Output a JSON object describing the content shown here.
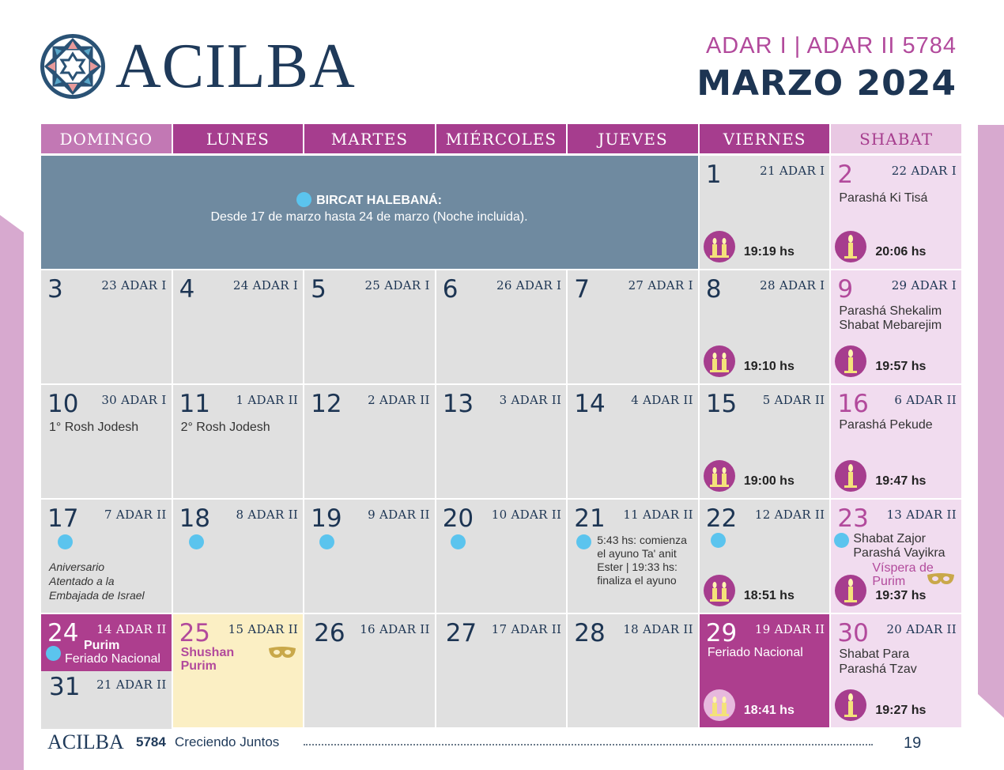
{
  "brand": {
    "name": "ACILBA"
  },
  "header": {
    "hebrew_months": "ADAR I | ADAR II 5784",
    "month": "MARZO 2024"
  },
  "weekdays": [
    "DOMINGO",
    "LUNES",
    "MARTES",
    "MIÉRCOLES",
    "JUEVES",
    "VIERNES",
    "SHABAT"
  ],
  "banner": {
    "title": "BIRCAT HALEBANÁ:",
    "text": "Desde 17 de marzo hasta 24 de marzo (Noche incluida)."
  },
  "days": {
    "d1": {
      "num": "1",
      "heb": "21 ADAR I",
      "time": "19:19 hs"
    },
    "d2": {
      "num": "2",
      "heb": "22 ADAR I",
      "note": "Parashá Ki Tisá",
      "time": "20:06 hs"
    },
    "d3": {
      "num": "3",
      "heb": "23 ADAR I"
    },
    "d4": {
      "num": "4",
      "heb": "24 ADAR I"
    },
    "d5": {
      "num": "5",
      "heb": "25 ADAR I"
    },
    "d6": {
      "num": "6",
      "heb": "26 ADAR I"
    },
    "d7": {
      "num": "7",
      "heb": "27 ADAR I"
    },
    "d8": {
      "num": "8",
      "heb": "28 ADAR I",
      "time": "19:10 hs"
    },
    "d9": {
      "num": "9",
      "heb": "29 ADAR I",
      "note1": "Parashá Shekalim",
      "note2": "Shabat Mebarejim",
      "time": "19:57 hs"
    },
    "d10": {
      "num": "10",
      "heb": "30 ADAR I",
      "note": "1° Rosh Jodesh"
    },
    "d11": {
      "num": "11",
      "heb": "1 ADAR II",
      "note": "2° Rosh Jodesh"
    },
    "d12": {
      "num": "12",
      "heb": "2 ADAR II"
    },
    "d13": {
      "num": "13",
      "heb": "3 ADAR II"
    },
    "d14": {
      "num": "14",
      "heb": "4 ADAR II"
    },
    "d15": {
      "num": "15",
      "heb": "5 ADAR II",
      "time": "19:00 hs"
    },
    "d16": {
      "num": "16",
      "heb": "6 ADAR II",
      "note": "Parashá Pekude",
      "time": "19:47 hs"
    },
    "d17": {
      "num": "17",
      "heb": "7 ADAR II",
      "note1": "Aniversario",
      "note2": "Atentado a la",
      "note3": "Embajada de Israel"
    },
    "d18": {
      "num": "18",
      "heb": "8 ADAR II"
    },
    "d19": {
      "num": "19",
      "heb": "9 ADAR II"
    },
    "d20": {
      "num": "20",
      "heb": "10 ADAR II"
    },
    "d21": {
      "num": "21",
      "heb": "11 ADAR II",
      "note1": "5:43 hs: comienza",
      "note2": "el ayuno Ta' anit",
      "note3": "Ester | 19:33 hs:",
      "note4": "finaliza el ayuno"
    },
    "d22": {
      "num": "22",
      "heb": "12 ADAR II",
      "time": "18:51 hs"
    },
    "d23": {
      "num": "23",
      "heb": "13 ADAR II",
      "note1": "Shabat Zajor",
      "note2": "Parashá Vayikra",
      "note3": "Víspera de",
      "note4": "Purim",
      "time": "19:37 hs"
    },
    "d24": {
      "num": "24",
      "heb": "14 ADAR II",
      "note1": "Purim",
      "note2": "Feriado Nacional"
    },
    "d31": {
      "num": "31",
      "heb": "21 ADAR II"
    },
    "d25": {
      "num": "25",
      "heb": "15 ADAR II",
      "note1": "Shushan",
      "note2": "Purim"
    },
    "d26": {
      "num": "26",
      "heb": "16 ADAR II"
    },
    "d27": {
      "num": "27",
      "heb": "17 ADAR II"
    },
    "d28": {
      "num": "28",
      "heb": "18 ADAR II"
    },
    "d29": {
      "num": "29",
      "heb": "19 ADAR II",
      "note": "Feriado Nacional",
      "time": "18:41 hs"
    },
    "d30": {
      "num": "30",
      "heb": "20 ADAR II",
      "note1": "Shabat Para",
      "note2": "Parashá Tzav",
      "time": "19:27 hs"
    }
  },
  "footer": {
    "brand": "ACILBA",
    "year": "5784",
    "slogan": "Creciendo Juntos",
    "page": "19"
  },
  "colors": {
    "primary_purple": "#a63d8e",
    "navy": "#1d3553",
    "shabat_bg": "#f1dcef",
    "banner": "#6f8aa0",
    "moon_dot": "#5bc4ee",
    "cream": "#fbefc4"
  }
}
